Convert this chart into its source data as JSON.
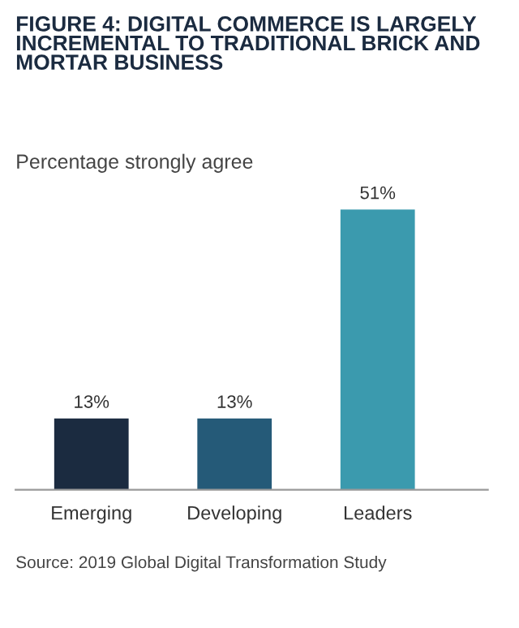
{
  "chart_data": {
    "type": "bar",
    "title": "FIGURE 4: DIGITAL COMMERCE IS LARGELY INCREMENTAL TO TRADITIONAL BRICK AND MORTAR BUSINESS",
    "subtitle": "Percentage strongly agree",
    "categories": [
      "Emerging",
      "Developing",
      "Leaders"
    ],
    "values": [
      13,
      13,
      51
    ],
    "colors": [
      "#1b2b40",
      "#255a78",
      "#3b9aae"
    ],
    "value_labels": [
      "13%",
      "13%",
      "51%"
    ],
    "annotations": [
      "Source: 2019 Global Digital Transformation Study"
    ]
  }
}
